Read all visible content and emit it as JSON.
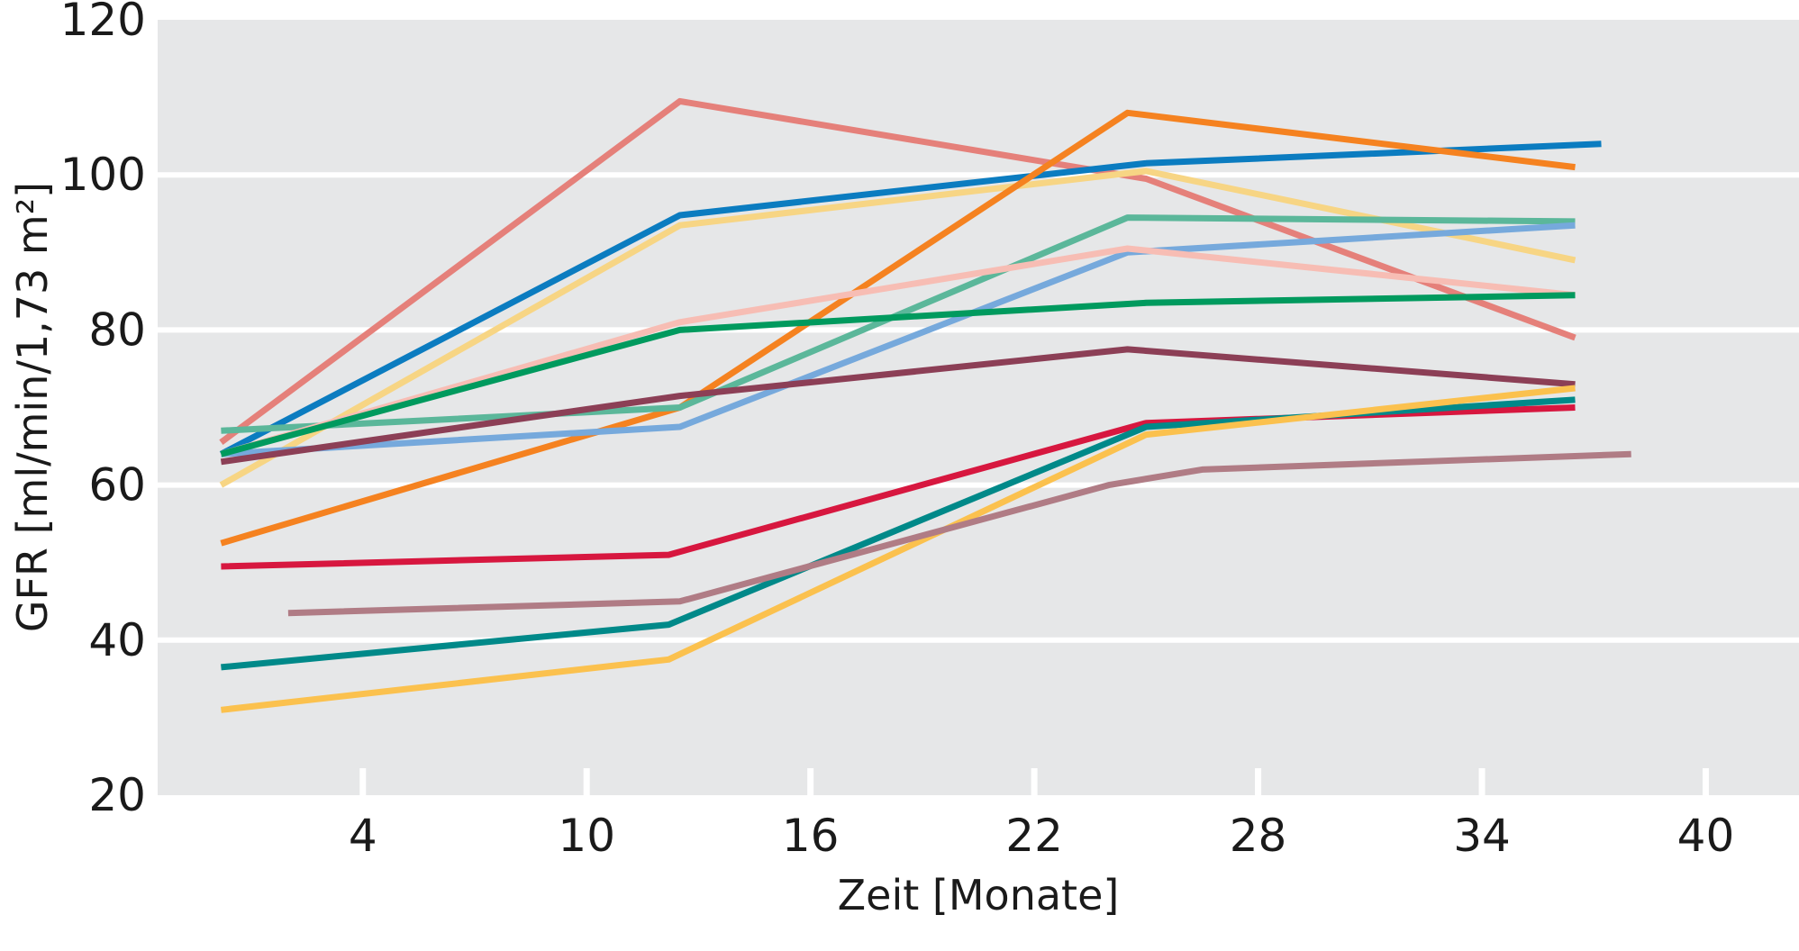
{
  "chart_data": {
    "type": "line",
    "xlabel": "Zeit [Monate]",
    "ylabel": "GFR [ml/min/1,73 m²]",
    "xlim": [
      -1.5,
      42.5
    ],
    "ylim": [
      20,
      120
    ],
    "xticks": [
      4,
      10,
      16,
      22,
      28,
      34,
      40
    ],
    "yticks": [
      20,
      40,
      60,
      80,
      100,
      120
    ],
    "grid": "horizontal lines at y ticks, short white x tick marks at bottom",
    "legend": "none",
    "series": [
      {
        "color": "#e5807a",
        "points": [
          [
            0.2,
            65.5
          ],
          [
            12.5,
            109.5
          ],
          [
            25.0,
            99.5
          ],
          [
            36.5,
            79.0
          ]
        ]
      },
      {
        "color": "#0b7cc0",
        "points": [
          [
            0.2,
            64.0
          ],
          [
            12.5,
            94.8
          ],
          [
            25.0,
            101.5
          ],
          [
            37.2,
            104.0
          ]
        ]
      },
      {
        "color": "#f7d584",
        "points": [
          [
            0.2,
            60.0
          ],
          [
            12.5,
            93.5
          ],
          [
            25.0,
            100.5
          ],
          [
            36.5,
            89.0
          ]
        ]
      },
      {
        "color": "#f58220",
        "points": [
          [
            0.2,
            52.5
          ],
          [
            12.5,
            70.0
          ],
          [
            24.5,
            108.0
          ],
          [
            36.5,
            101.0
          ]
        ]
      },
      {
        "color": "#5bb79a",
        "points": [
          [
            0.2,
            67.0
          ],
          [
            12.5,
            70.0
          ],
          [
            24.5,
            94.5
          ],
          [
            36.5,
            94.0
          ]
        ]
      },
      {
        "color": "#76a9dc",
        "points": [
          [
            0.2,
            64.0
          ],
          [
            12.5,
            67.5
          ],
          [
            24.5,
            90.0
          ],
          [
            36.5,
            93.5
          ]
        ]
      },
      {
        "color": "#f7bdb4",
        "points": [
          [
            0.2,
            64.0
          ],
          [
            12.5,
            81.0
          ],
          [
            24.5,
            90.5
          ],
          [
            36.5,
            84.5
          ]
        ]
      },
      {
        "color": "#009a5e",
        "points": [
          [
            0.2,
            64.0
          ],
          [
            12.5,
            80.0
          ],
          [
            25.0,
            83.5
          ],
          [
            36.5,
            84.5
          ]
        ]
      },
      {
        "color": "#8c3f56",
        "points": [
          [
            0.2,
            63.0
          ],
          [
            12.5,
            71.5
          ],
          [
            24.5,
            77.5
          ],
          [
            36.5,
            73.0
          ]
        ]
      },
      {
        "color": "#d7173f",
        "points": [
          [
            0.2,
            49.5
          ],
          [
            12.2,
            51.0
          ],
          [
            25.0,
            68.0
          ],
          [
            36.5,
            70.0
          ]
        ]
      },
      {
        "color": "#008989",
        "points": [
          [
            0.2,
            36.5
          ],
          [
            12.2,
            42.0
          ],
          [
            25.0,
            67.5
          ],
          [
            36.5,
            71.0
          ]
        ]
      },
      {
        "color": "#fbc14e",
        "points": [
          [
            0.2,
            31.0
          ],
          [
            12.2,
            37.5
          ],
          [
            25.0,
            66.5
          ],
          [
            36.5,
            72.5
          ]
        ]
      },
      {
        "color": "#b07c85",
        "points": [
          [
            2.0,
            43.5
          ],
          [
            12.5,
            45.0
          ],
          [
            24.0,
            60.0
          ],
          [
            26.5,
            62.0
          ],
          [
            38.0,
            64.0
          ]
        ]
      }
    ]
  },
  "colors": {
    "plot_background": "#e6e7e8",
    "gridline": "#ffffff",
    "text": "#1a1a1a"
  }
}
